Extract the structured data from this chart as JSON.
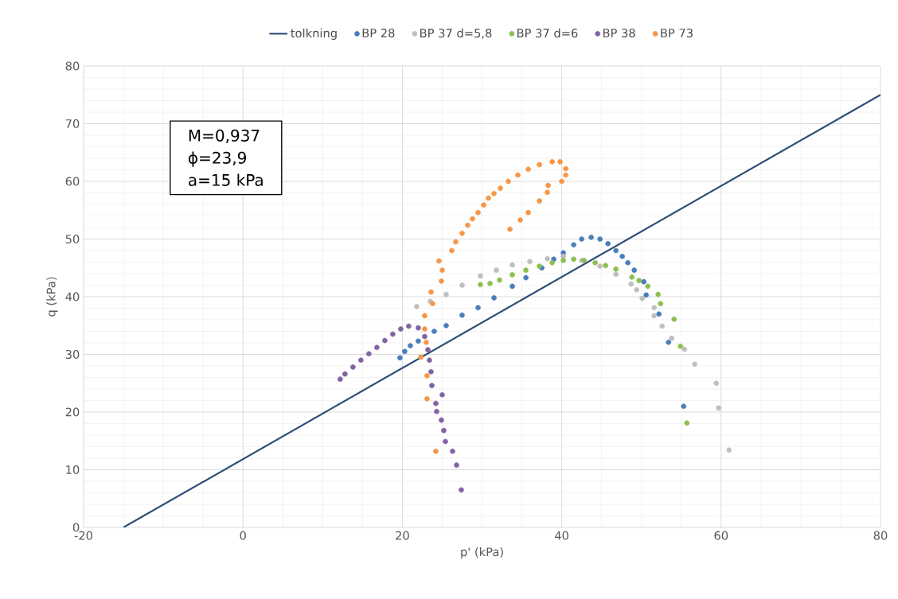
{
  "chart_data": {
    "type": "scatter",
    "xlabel": "p' (kPa)",
    "ylabel": "q (kPa)",
    "xlim": [
      -20,
      80
    ],
    "ylim": [
      0,
      80
    ],
    "xticks": [
      -20,
      0,
      20,
      40,
      60,
      80
    ],
    "yticks": [
      0,
      10,
      20,
      30,
      40,
      50,
      60,
      70,
      80
    ],
    "grid": true,
    "legend": "top",
    "annotations": [
      "M=0,937",
      "ϕ=23,9",
      "a=15 kPa"
    ],
    "series": [
      {
        "name": "tolkning",
        "type": "line",
        "marker": "none",
        "color": "#2c4d75",
        "x": [
          -15,
          80
        ],
        "values": [
          0,
          75
        ]
      },
      {
        "name": "BP 28",
        "marker": "circle",
        "color": "#4a7ebb",
        "x": [
          19.7,
          20.3,
          21,
          22,
          23,
          24,
          25.5,
          27.5,
          29.5,
          31.5,
          33.8,
          35.5,
          37.5,
          39,
          40.2,
          41.5,
          42.5,
          43.7,
          44.8,
          45.8,
          46.8,
          47.6,
          48.3,
          49.1,
          50.3,
          50.6,
          52.2,
          53.4,
          55.3
        ],
        "values": [
          29.4,
          30.5,
          31.5,
          32.3,
          null,
          34,
          35,
          36.8,
          38.1,
          39.8,
          41.8,
          43.3,
          45,
          46.5,
          47.6,
          49,
          50,
          50.3,
          50,
          49.2,
          48,
          47,
          45.9,
          44.6,
          42.6,
          40.3,
          37,
          32.1,
          21
        ]
      },
      {
        "name": "BP 37 d=5,8",
        "marker": "circle",
        "color": "#bfbfbf",
        "x": [
          21.8,
          23.5,
          25.5,
          27.5,
          29.8,
          31.8,
          33.8,
          36,
          38.2,
          40.2,
          42.5,
          44.8,
          46.8,
          48.7,
          49.4,
          50.1,
          51.6,
          51.6,
          52.6,
          53.8,
          55.4,
          56.7,
          59.4,
          59.7,
          61
        ],
        "values": [
          38.3,
          39.2,
          40.4,
          42,
          43.6,
          44.6,
          45.5,
          46.1,
          46.6,
          47,
          46.3,
          45.3,
          43.9,
          42.2,
          41.2,
          39.7,
          38.1,
          36.7,
          34.9,
          32.8,
          30.9,
          28.3,
          25,
          20.7,
          13.4
        ]
      },
      {
        "name": "BP 37 d=6",
        "marker": "circle",
        "color": "#8cbf4f",
        "x": [
          29.8,
          31,
          32.2,
          33.8,
          35.5,
          37.2,
          38.8,
          40.2,
          41.5,
          42.8,
          44.2,
          45.5,
          46.8,
          48.8,
          49.7,
          50.8,
          52.1,
          52.4,
          54.1,
          54.9,
          55.7
        ],
        "values": [
          42.1,
          42.3,
          42.9,
          43.8,
          44.6,
          45.3,
          45.9,
          46.3,
          46.5,
          46.3,
          45.9,
          45.4,
          44.8,
          43.4,
          42.8,
          41.8,
          40.4,
          38.8,
          36.1,
          31.4,
          18.1
        ]
      },
      {
        "name": "BP 38",
        "marker": "circle",
        "color": "#8064a2",
        "x": [
          12.2,
          12.8,
          13.8,
          14.8,
          15.8,
          16.8,
          17.8,
          18.8,
          19.8,
          20.8,
          22,
          22.8,
          23.2,
          23.4,
          23.6,
          23.7,
          25,
          24.2,
          24.3,
          24.9,
          25.2,
          25.4,
          26.3,
          26.8,
          27.4
        ],
        "values": [
          25.7,
          26.6,
          27.8,
          29,
          30.1,
          31.2,
          32.4,
          33.5,
          34.4,
          34.9,
          34.6,
          33.1,
          30.8,
          29,
          27,
          24.6,
          23,
          21.5,
          20.1,
          18.6,
          16.8,
          14.9,
          13.2,
          10.8,
          6.5
        ]
      },
      {
        "name": "BP 73",
        "marker": "circle",
        "color": "#f79646",
        "x": [
          24.2,
          23.1,
          23.1,
          22.3,
          23,
          22.8,
          22.8,
          23.8,
          23.6,
          24.9,
          25,
          24.6,
          26.2,
          26.7,
          27.5,
          28.2,
          28.8,
          29.5,
          30.2,
          30.8,
          31.5,
          32.3,
          33.3,
          34.5,
          35.8,
          37.2,
          38.8,
          39.8,
          40.5,
          40.5,
          40,
          38.3,
          38.2,
          37.2,
          35.8,
          34.8,
          33.5
        ],
        "values": [
          13.2,
          22.3,
          26.3,
          29.5,
          32.1,
          34.4,
          36.7,
          38.8,
          40.8,
          42.7,
          44.6,
          46.2,
          48,
          49.5,
          51,
          52.4,
          53.5,
          54.6,
          55.9,
          57.1,
          57.9,
          58.8,
          60,
          61.1,
          62.1,
          62.9,
          63.4,
          63.4,
          62.2,
          61.1,
          60,
          59.3,
          58.1,
          56.6,
          54.6,
          53.3,
          51.7
        ]
      }
    ]
  }
}
